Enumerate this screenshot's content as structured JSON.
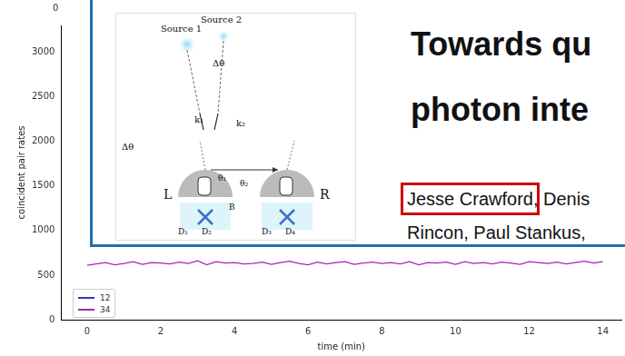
{
  "chart_data": {
    "type": "line",
    "xlabel": "time (min)",
    "ylabel": "coincident pair rates",
    "x": [
      0,
      0.25,
      0.5,
      0.75,
      1,
      1.25,
      1.5,
      1.75,
      2,
      2.25,
      2.5,
      2.75,
      3,
      3.25,
      3.5,
      3.75,
      4,
      4.25,
      4.5,
      4.75,
      5,
      5.25,
      5.5,
      5.75,
      6,
      6.25,
      6.5,
      6.75,
      7,
      7.25,
      7.5,
      7.75,
      8,
      8.25,
      8.5,
      8.75,
      9,
      9.25,
      9.5,
      9.75,
      10,
      10.25,
      10.5,
      10.75,
      11,
      11.25,
      11.5,
      11.75,
      12,
      12.25,
      12.5,
      12.75,
      13,
      13.25,
      13.5,
      13.75,
      14
    ],
    "series": [
      {
        "name": "12",
        "color": "#3333cc",
        "values": [
          null,
          null,
          null,
          null,
          null,
          null,
          null,
          null,
          null,
          null,
          null,
          null,
          null,
          null,
          null,
          null,
          null,
          null,
          null,
          null,
          null,
          null,
          null,
          null,
          null,
          null,
          null,
          null,
          null,
          null,
          null,
          null,
          null,
          null,
          null,
          null,
          null,
          null,
          null,
          null,
          null,
          null,
          null,
          null,
          null,
          null,
          null,
          null,
          null,
          null,
          null,
          null,
          null,
          null,
          null,
          null,
          null
        ]
      },
      {
        "name": "34",
        "color": "#aa22bb",
        "values": [
          610,
          625,
          640,
          615,
          630,
          650,
          620,
          640,
          635,
          625,
          645,
          630,
          660,
          615,
          650,
          635,
          640,
          625,
          630,
          645,
          620,
          640,
          655,
          630,
          615,
          645,
          625,
          640,
          650,
          620,
          635,
          645,
          630,
          640,
          625,
          650,
          615,
          640,
          635,
          645,
          620,
          650,
          630,
          640,
          625,
          645,
          635,
          620,
          650,
          640,
          630,
          645,
          625,
          640,
          655,
          635,
          650
        ]
      }
    ],
    "xlim": [
      -0.7,
      14.5
    ],
    "xticks": [
      0,
      2,
      4,
      6,
      8,
      10,
      12,
      14
    ],
    "ylim": [
      0,
      3300
    ],
    "yticks": [
      0,
      500,
      1000,
      1500,
      2000,
      2500,
      3000
    ],
    "grid": false,
    "legend": "lower left"
  },
  "upper_chart": {
    "yticks": [
      0
    ]
  },
  "slide": {
    "title_lines": [
      "Towards qu",
      "photon inte"
    ],
    "author_lines": [
      "Jesse Crawford, Denis",
      "Rincon, Paul Stankus,"
    ],
    "highlighted": "Jesse Crawford",
    "diagram_labels": {
      "source1": "Source 1",
      "source2": "Source 2",
      "dtheta_top": "Δθ",
      "dtheta_left": "Δθ",
      "k1": "k₁",
      "k2": "k₂",
      "L": "L",
      "R": "R",
      "theta1": "θ₁",
      "theta2": "θ₂",
      "B": "B",
      "D1": "D₁",
      "D2": "D₂",
      "D3": "D₃",
      "D4": "D₄"
    }
  }
}
